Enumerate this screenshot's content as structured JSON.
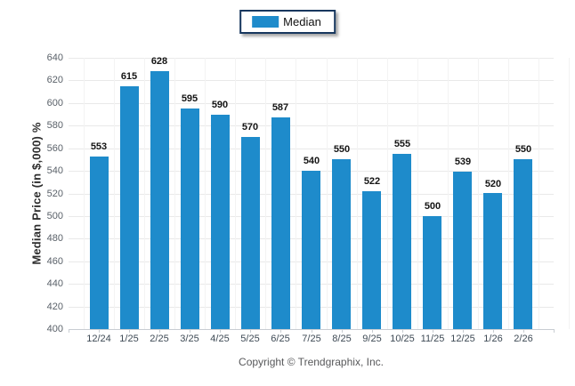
{
  "legend": {
    "items": [
      {
        "label": "Median",
        "color": "#1e8bcb"
      }
    ]
  },
  "footer": {
    "copyright": "Copyright © Trendgraphix, Inc."
  },
  "chart_data": {
    "type": "bar",
    "title": "",
    "xlabel": "",
    "ylabel": "Median Price (in $,000) %",
    "series_name": "Median",
    "categories": [
      "12/24",
      "1/25",
      "2/25",
      "3/25",
      "4/25",
      "5/25",
      "6/25",
      "7/25",
      "8/25",
      "9/25",
      "10/25",
      "11/25",
      "12/25",
      "1/26",
      "2/26"
    ],
    "values": [
      553,
      615,
      628,
      595,
      590,
      570,
      587,
      540,
      550,
      522,
      555,
      500,
      539,
      520,
      550
    ],
    "value_labels": true,
    "ylim": [
      400,
      640
    ],
    "yticks": [
      400,
      420,
      440,
      460,
      480,
      500,
      520,
      540,
      560,
      580,
      600,
      620,
      640
    ],
    "grid": true,
    "legend_position": "top-center",
    "bar_color": "#1e8bcb"
  }
}
